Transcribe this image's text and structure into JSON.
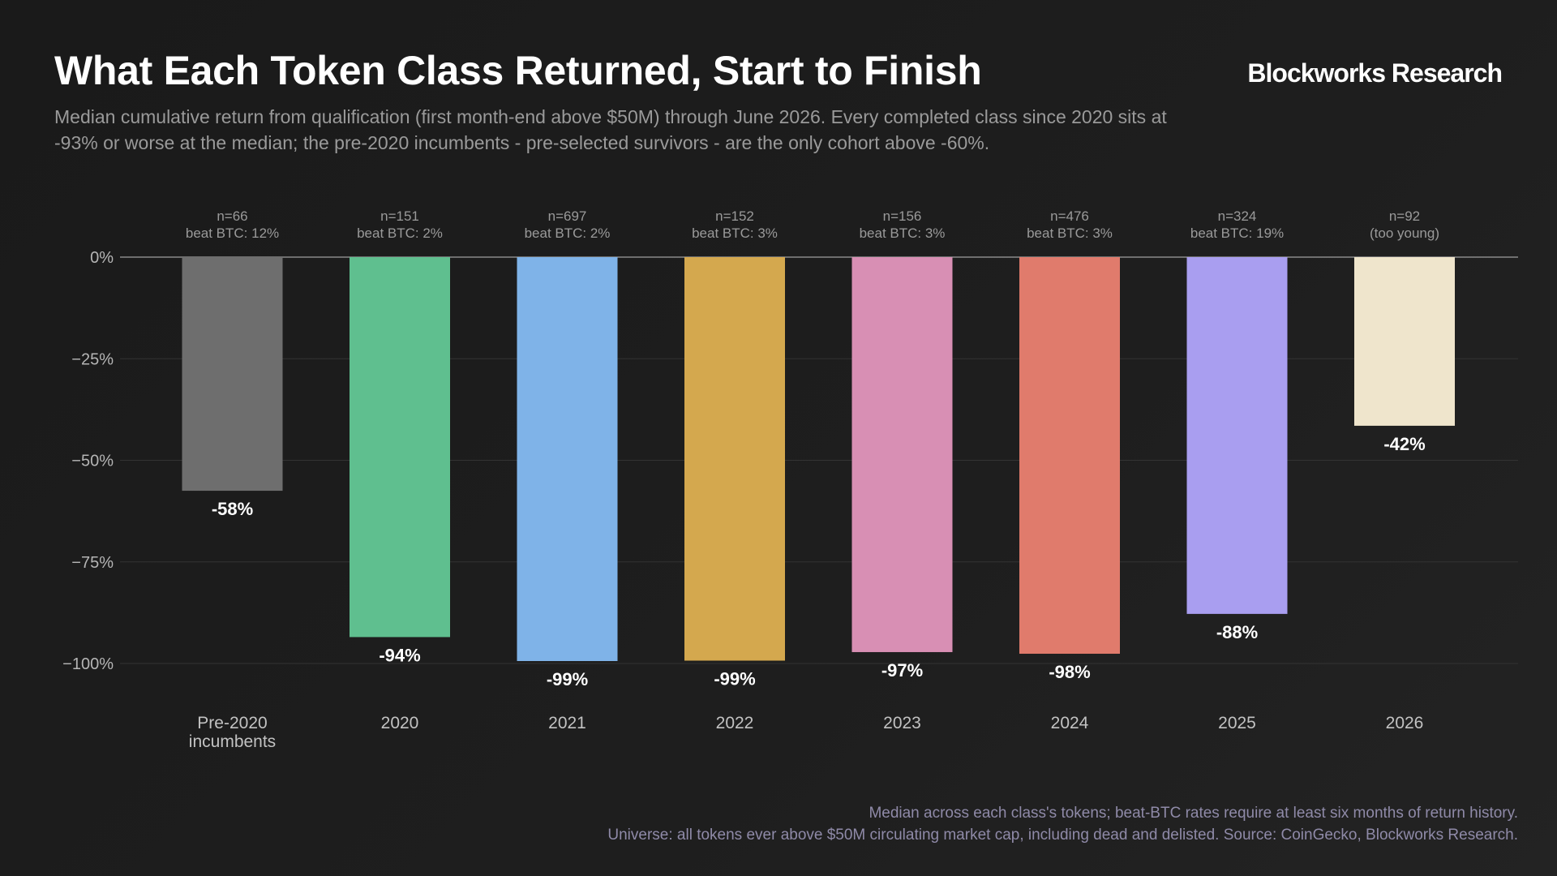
{
  "header": {
    "title": "What Each Token Class Returned, Start to Finish",
    "brand": "Blockworks Research",
    "subtitle": "Median cumulative return from qualification (first month-end above $50M) through June 2026. Every completed class since 2020 sits at -93% or worse at the median; the pre-2020 incumbents - pre-selected survivors - are the only cohort above -60%."
  },
  "footer": {
    "line1": "Median across each class's tokens; beat-BTC rates require at least six months of return history.",
    "line2": "Universe: all tokens ever above $50M circulating market cap, including dead and delisted. Source: CoinGecko, Blockworks Research."
  },
  "chart_data": {
    "type": "bar",
    "title": "What Each Token Class Returned, Start to Finish",
    "xlabel": "",
    "ylabel": "",
    "ylim": [
      -100,
      0
    ],
    "yticks": [
      0,
      -25,
      -50,
      -75,
      -100
    ],
    "ytick_labels": [
      "0%",
      "−25%",
      "−50%",
      "−75%",
      "−100%"
    ],
    "grid": true,
    "categories": [
      [
        "Pre-2020",
        "incumbents"
      ],
      [
        "2020"
      ],
      [
        "2021"
      ],
      [
        "2022"
      ],
      [
        "2023"
      ],
      [
        "2024"
      ],
      [
        "2025"
      ],
      [
        "2026"
      ]
    ],
    "values": [
      -57.5,
      -93.5,
      -99.4,
      -99.3,
      -97.2,
      -97.6,
      -87.8,
      -41.5
    ],
    "value_labels": [
      "-58%",
      "-94%",
      "-99%",
      "-99%",
      "-97%",
      "-98%",
      "-88%",
      "-42%"
    ],
    "top_labels": [
      [
        "n=66",
        "beat BTC: 12%"
      ],
      [
        "n=151",
        "beat BTC: 2%"
      ],
      [
        "n=697",
        "beat BTC: 2%"
      ],
      [
        "n=152",
        "beat BTC: 3%"
      ],
      [
        "n=156",
        "beat BTC: 3%"
      ],
      [
        "n=476",
        "beat BTC: 3%"
      ],
      [
        "n=324",
        "beat BTC: 19%"
      ],
      [
        "n=92",
        "(too young)"
      ]
    ],
    "colors": [
      "#6e6e6e",
      "#5fbf8f",
      "#7fb3e8",
      "#d4a84e",
      "#d88fb4",
      "#e07b6c",
      "#a99ef0",
      "#efe5cc"
    ]
  }
}
